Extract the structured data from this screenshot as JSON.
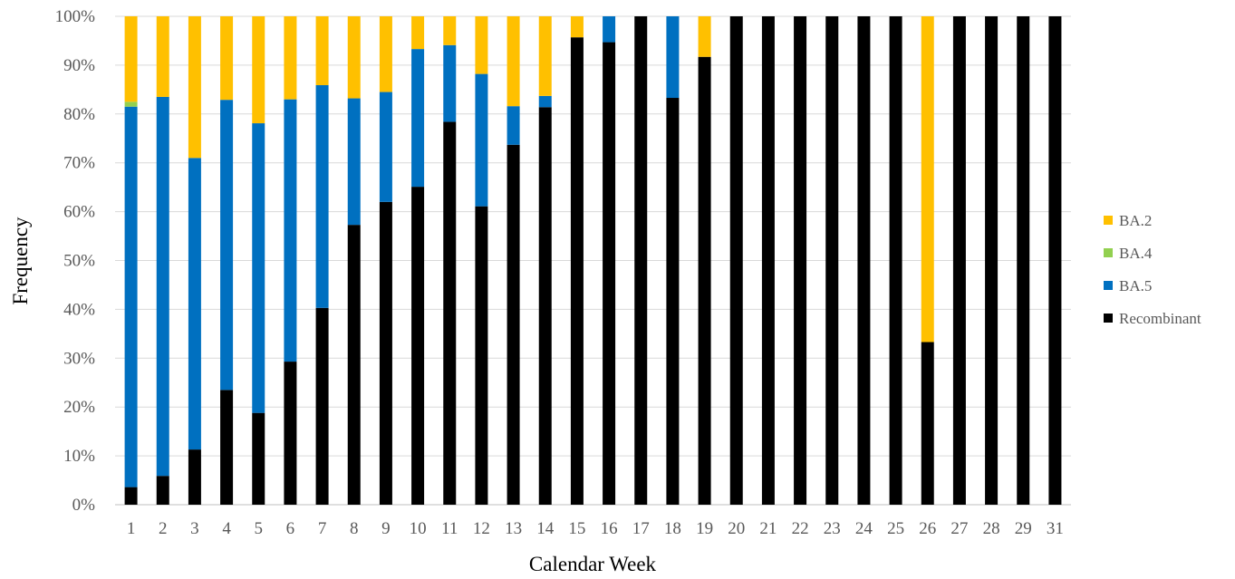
{
  "chart_data": {
    "type": "bar",
    "stacked": true,
    "xlabel": "Calendar Week",
    "ylabel": "Frequency",
    "ylim": [
      0,
      100
    ],
    "yticks": [
      "0%",
      "10%",
      "20%",
      "30%",
      "40%",
      "50%",
      "60%",
      "70%",
      "80%",
      "90%",
      "100%"
    ],
    "grid": true,
    "legend_position": "right",
    "categories": [
      "1",
      "2",
      "3",
      "4",
      "5",
      "6",
      "7",
      "8",
      "9",
      "10",
      "11",
      "12",
      "13",
      "14",
      "15",
      "16",
      "17",
      "18",
      "19",
      "20",
      "21",
      "22",
      "23",
      "24",
      "25",
      "26",
      "27",
      "28",
      "29",
      "31"
    ],
    "series": [
      {
        "name": "Recombinant",
        "color": "#000000",
        "values": [
          3.6,
          5.9,
          11.3,
          23.5,
          18.8,
          29.3,
          40.3,
          57.3,
          62.0,
          65.1,
          78.4,
          61.1,
          73.7,
          81.4,
          95.7,
          94.7,
          100,
          83.3,
          91.7,
          100,
          100,
          100,
          100,
          100,
          100,
          33.3,
          100,
          100,
          100,
          100
        ]
      },
      {
        "name": "BA.5",
        "color": "#0070C0",
        "values": [
          77.9,
          77.6,
          59.7,
          59.4,
          59.3,
          53.7,
          45.6,
          25.9,
          22.5,
          28.2,
          15.7,
          27.1,
          7.9,
          2.3,
          0,
          5.3,
          0,
          16.7,
          0,
          0,
          0,
          0,
          0,
          0,
          0,
          0,
          0,
          0,
          0,
          0
        ]
      },
      {
        "name": "BA.4",
        "color": "#92D050",
        "values": [
          1.0,
          0,
          0,
          0,
          0,
          0,
          0,
          0,
          0,
          0,
          0,
          0,
          0,
          0,
          0,
          0,
          0,
          0,
          0,
          0,
          0,
          0,
          0,
          0,
          0,
          0,
          0,
          0,
          0,
          0
        ]
      },
      {
        "name": "BA.2",
        "color": "#FFC000",
        "values": [
          17.5,
          16.5,
          29.0,
          17.1,
          21.9,
          17.0,
          14.1,
          16.8,
          15.5,
          6.7,
          5.9,
          11.8,
          18.4,
          16.3,
          4.3,
          0,
          0,
          0,
          8.3,
          0,
          0,
          0,
          0,
          0,
          0,
          66.7,
          0,
          0,
          0,
          0
        ]
      }
    ],
    "legend_order": [
      "BA.2",
      "BA.4",
      "BA.5",
      "Recombinant"
    ]
  }
}
